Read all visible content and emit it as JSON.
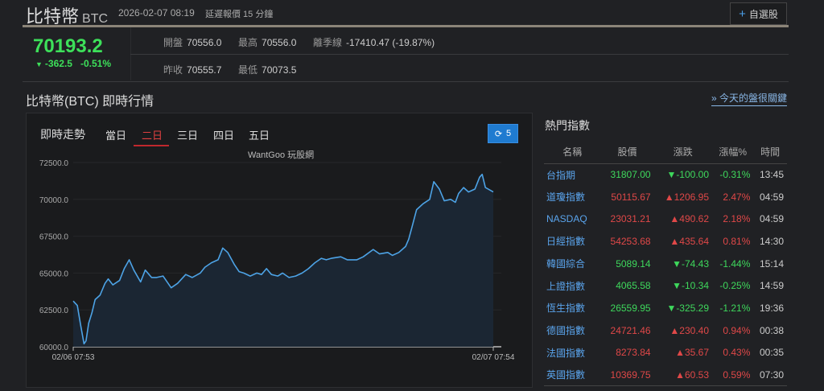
{
  "header": {
    "name": "比特幣",
    "symbol": "BTC",
    "timestamp": "2026-02-07 08:19",
    "delay_note": "延遲報價 15 分鐘",
    "watchlist_button": "自選股"
  },
  "quote": {
    "price": "70193.2",
    "change": "-362.5",
    "change_pct": "-0.51%",
    "open_label": "開盤",
    "open": "70556.0",
    "high_label": "最高",
    "high": "70556.0",
    "season_label": "離季線",
    "season": "-17410.47 (-19.87%)",
    "prev_label": "昨收",
    "prev": "70555.7",
    "low_label": "最低",
    "low": "70073.5"
  },
  "section_title": "比特幣(BTC) 即時行情",
  "news_link": "» 今天的盤很關鍵",
  "chart_panel": {
    "title": "即時走勢",
    "tabs": [
      "當日",
      "二日",
      "三日",
      "四日",
      "五日"
    ],
    "active_tab": "二日",
    "refresh_count": "5",
    "credit": "WantGoo 玩股網"
  },
  "chart_data": {
    "type": "area",
    "line_color": "#4da3e6",
    "ylim": [
      60000,
      72500
    ],
    "yticks": [
      "72500.0",
      "70000.0",
      "67500.0",
      "65000.0",
      "62500.0",
      "60000.0"
    ],
    "xticks": [
      "02/06 07:53",
      "02/07 07:54"
    ],
    "grid": true,
    "points": [
      [
        "02/06 07:53",
        63100
      ],
      [
        "02/06 08:07",
        62800
      ],
      [
        "02/06 08:18",
        61500
      ],
      [
        "02/06 08:30",
        60200
      ],
      [
        "02/06 08:37",
        60400
      ],
      [
        "02/06 08:46",
        61600
      ],
      [
        "02/06 08:57",
        62300
      ],
      [
        "02/06 09:08",
        63200
      ],
      [
        "02/06 09:25",
        63500
      ],
      [
        "02/06 09:42",
        64300
      ],
      [
        "02/06 09:53",
        64600
      ],
      [
        "02/06 10:09",
        64200
      ],
      [
        "02/06 10:32",
        64500
      ],
      [
        "02/06 10:48",
        65300
      ],
      [
        "02/06 11:05",
        65900
      ],
      [
        "02/06 11:21",
        65200
      ],
      [
        "02/06 11:44",
        64400
      ],
      [
        "02/06 12:00",
        65200
      ],
      [
        "02/06 12:22",
        64700
      ],
      [
        "02/06 12:39",
        64700
      ],
      [
        "02/06 13:01",
        64800
      ],
      [
        "02/06 13:29",
        64000
      ],
      [
        "02/06 13:51",
        64300
      ],
      [
        "02/06 14:19",
        64900
      ],
      [
        "02/06 14:41",
        64700
      ],
      [
        "02/06 15:09",
        65000
      ],
      [
        "02/06 15:25",
        65400
      ],
      [
        "02/06 15:47",
        65700
      ],
      [
        "02/06 16:10",
        65900
      ],
      [
        "02/06 16:26",
        66700
      ],
      [
        "02/06 16:43",
        66400
      ],
      [
        "02/06 17:05",
        65600
      ],
      [
        "02/06 17:22",
        65100
      ],
      [
        "02/06 17:38",
        65000
      ],
      [
        "02/06 18:00",
        64800
      ],
      [
        "02/06 18:23",
        65000
      ],
      [
        "02/06 18:39",
        64900
      ],
      [
        "02/06 18:56",
        65300
      ],
      [
        "02/06 19:13",
        64900
      ],
      [
        "02/06 19:35",
        64800
      ],
      [
        "02/06 19:51",
        65000
      ],
      [
        "02/06 20:13",
        64700
      ],
      [
        "02/06 20:36",
        64800
      ],
      [
        "02/06 20:58",
        65000
      ],
      [
        "02/06 21:20",
        65300
      ],
      [
        "02/06 21:42",
        65700
      ],
      [
        "02/06 22:04",
        66000
      ],
      [
        "02/06 22:21",
        65900
      ],
      [
        "02/06 22:38",
        66000
      ],
      [
        "02/06 23:11",
        66100
      ],
      [
        "02/06 23:33",
        65900
      ],
      [
        "02/07 00:06",
        65900
      ],
      [
        "02/07 00:28",
        66100
      ],
      [
        "02/07 01:02",
        66600
      ],
      [
        "02/07 01:24",
        66300
      ],
      [
        "02/07 01:52",
        66400
      ],
      [
        "02/07 02:08",
        66200
      ],
      [
        "02/07 02:30",
        66400
      ],
      [
        "02/07 02:53",
        66800
      ],
      [
        "02/07 03:04",
        67300
      ],
      [
        "02/07 03:15",
        68100
      ],
      [
        "02/07 03:31",
        69300
      ],
      [
        "02/07 03:53",
        69700
      ],
      [
        "02/07 04:16",
        70000
      ],
      [
        "02/07 04:30",
        71200
      ],
      [
        "02/07 04:49",
        70700
      ],
      [
        "02/07 05:06",
        69900
      ],
      [
        "02/07 05:28",
        70000
      ],
      [
        "02/07 05:44",
        69800
      ],
      [
        "02/07 05:55",
        70400
      ],
      [
        "02/07 06:12",
        70800
      ],
      [
        "02/07 06:29",
        70500
      ],
      [
        "02/07 06:51",
        70700
      ],
      [
        "02/07 07:07",
        71500
      ],
      [
        "02/07 07:16",
        71700
      ],
      [
        "02/07 07:27",
        70800
      ],
      [
        "02/07 07:54",
        70500
      ]
    ]
  },
  "hot_indices": {
    "title": "熱門指數",
    "columns": [
      "名稱",
      "股價",
      "漲跌",
      "漲幅%",
      "時間"
    ],
    "rows": [
      {
        "name": "台指期",
        "price": "31807.00",
        "change": "▼-100.00",
        "pct": "-0.31%",
        "time": "13:45",
        "dir": "dn"
      },
      {
        "name": "道瓊指數",
        "price": "50115.67",
        "change": "▲1206.95",
        "pct": "2.47%",
        "time": "04:59",
        "dir": "up"
      },
      {
        "name": "NASDAQ",
        "price": "23031.21",
        "change": "▲490.62",
        "pct": "2.18%",
        "time": "04:59",
        "dir": "up"
      },
      {
        "name": "日經指數",
        "price": "54253.68",
        "change": "▲435.64",
        "pct": "0.81%",
        "time": "14:30",
        "dir": "up"
      },
      {
        "name": "韓國綜合",
        "price": "5089.14",
        "change": "▼-74.43",
        "pct": "-1.44%",
        "time": "15:14",
        "dir": "dn"
      },
      {
        "name": "上證指數",
        "price": "4065.58",
        "change": "▼-10.34",
        "pct": "-0.25%",
        "time": "14:59",
        "dir": "dn"
      },
      {
        "name": "恆生指數",
        "price": "26559.95",
        "change": "▼-325.29",
        "pct": "-1.21%",
        "time": "19:36",
        "dir": "dn"
      },
      {
        "name": "德國指數",
        "price": "24721.46",
        "change": "▲230.40",
        "pct": "0.94%",
        "time": "00:38",
        "dir": "up"
      },
      {
        "name": "法國指數",
        "price": "8273.84",
        "change": "▲35.67",
        "pct": "0.43%",
        "time": "00:35",
        "dir": "up"
      },
      {
        "name": "英國指數",
        "price": "10369.75",
        "change": "▲60.53",
        "pct": "0.59%",
        "time": "07:30",
        "dir": "up"
      }
    ]
  }
}
